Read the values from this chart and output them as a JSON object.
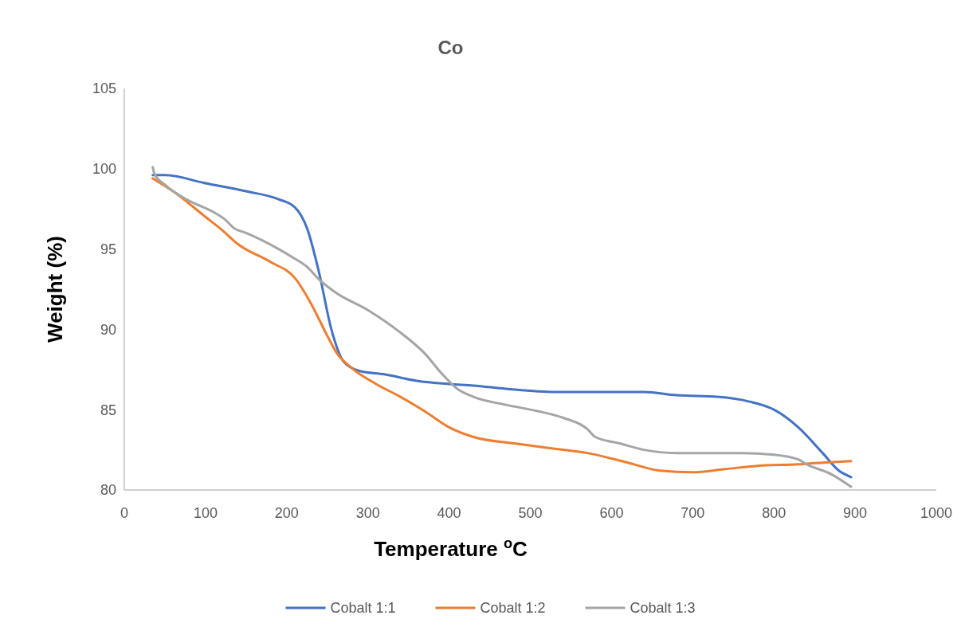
{
  "chart_data": {
    "type": "line",
    "title": "Co",
    "xlabel": "Temperature $^{o}$C",
    "ylabel": "Weight (%)",
    "xlim": [
      0,
      1000
    ],
    "xticks": [
      0,
      100,
      200,
      300,
      400,
      500,
      600,
      700,
      800,
      900,
      1000
    ],
    "ylim": [
      80,
      105
    ],
    "yticks": [
      80,
      85,
      90,
      95,
      100,
      105
    ],
    "grid": false,
    "legend": "bottom",
    "marker": "none",
    "line_style": "solid",
    "series": [
      {
        "name": "Cobalt 1:1",
        "color": "#4472c4",
        "x": [
          35,
          50,
          100,
          150,
          190,
          210,
          225,
          240,
          255,
          270,
          290,
          320,
          360,
          400,
          430,
          470,
          530,
          600,
          640,
          680,
          730,
          770,
          800,
          830,
          860,
          880,
          895
        ],
        "values": [
          99.6,
          99.6,
          99.1,
          98.6,
          98.1,
          97.6,
          96.3,
          93.5,
          90,
          88,
          87.4,
          87.2,
          86.8,
          86.6,
          86.5,
          86.3,
          86.1,
          86.1,
          86.1,
          85.9,
          85.8,
          85.5,
          85.0,
          83.9,
          82.3,
          81.2,
          80.8
        ]
      },
      {
        "name": "Cobalt 1:2",
        "color": "#ed7d31",
        "x": [
          35,
          60,
          100,
          120,
          140,
          180,
          210,
          230,
          250,
          262,
          280,
          310,
          340,
          370,
          400,
          430,
          480,
          540,
          570,
          620,
          660,
          700,
          740,
          780,
          830,
          860,
          895
        ],
        "values": [
          99.4,
          98.6,
          97.0,
          96.2,
          95.3,
          94.2,
          93.2,
          91.6,
          89.6,
          88.5,
          87.6,
          86.6,
          85.8,
          84.9,
          83.9,
          83.3,
          82.9,
          82.5,
          82.3,
          81.7,
          81.2,
          81.1,
          81.3,
          81.5,
          81.6,
          81.7,
          81.8
        ]
      },
      {
        "name": "Cobalt 1:3",
        "color": "#a5a5a5",
        "x": [
          35,
          37,
          50,
          80,
          110,
          125,
          135,
          150,
          190,
          210,
          225,
          240,
          260,
          300,
          340,
          370,
          390,
          410,
          430,
          470,
          510,
          540,
          570,
          580,
          610,
          640,
          680,
          700,
          720,
          760,
          800,
          830,
          840,
          870,
          895
        ],
        "values": [
          100.1,
          99.7,
          99.0,
          98.0,
          97.3,
          96.8,
          96.3,
          96.0,
          95.0,
          94.4,
          93.9,
          93.1,
          92.3,
          91.2,
          89.8,
          88.5,
          87.3,
          86.3,
          85.8,
          85.3,
          84.9,
          84.5,
          83.8,
          83.3,
          82.9,
          82.5,
          82.3,
          82.3,
          82.3,
          82.3,
          82.2,
          81.9,
          81.6,
          81.0,
          80.2
        ]
      }
    ]
  }
}
